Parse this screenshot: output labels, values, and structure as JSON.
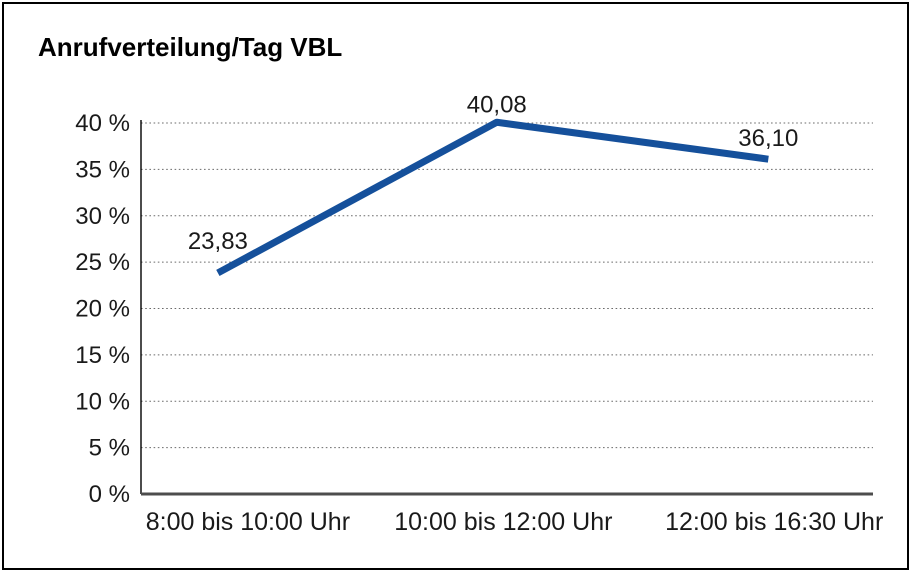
{
  "chart_data": {
    "type": "line",
    "title": "Anrufverteilung/Tag VBL",
    "categories": [
      "8:00 bis 10:00 Uhr",
      "10:00 bis 12:00 Uhr",
      "12:00 bis 16:30 Uhr"
    ],
    "values": [
      23.83,
      40.08,
      36.1
    ],
    "data_labels": [
      "23,83",
      "40,08",
      "36,10"
    ],
    "ylim": [
      0,
      40
    ],
    "y_tick_step": 5,
    "y_tick_labels": [
      "0 %",
      "5 %",
      "10 %",
      "15 %",
      "20 %",
      "25 %",
      "30 %",
      "35 %",
      "40 %"
    ],
    "grid": "horizontal-dotted",
    "legend": "none",
    "colors": {
      "line": "#15509b",
      "text": "#1a1a1a",
      "grid": "#6b6b6b",
      "axis": "#000000",
      "baseline": "#4d4d4d",
      "frame": "#000000",
      "background": "#ffffff"
    }
  }
}
